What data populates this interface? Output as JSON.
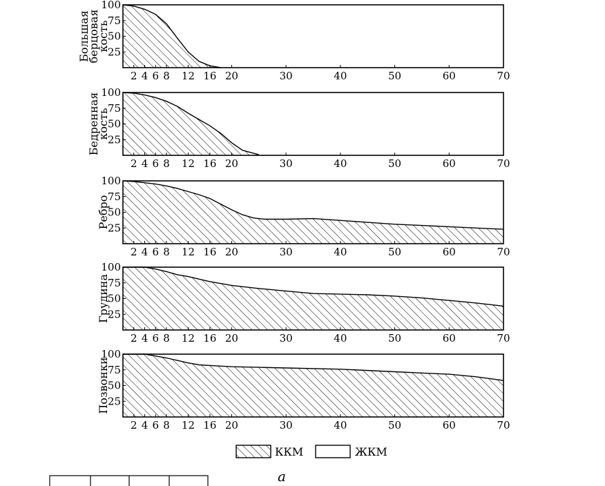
{
  "chart_data": {
    "type": "area",
    "x_ticks": [
      2,
      4,
      6,
      8,
      12,
      16,
      20,
      30,
      40,
      50,
      60,
      70
    ],
    "y_ticks": [
      25,
      50,
      75,
      100
    ],
    "xlim": [
      0,
      70
    ],
    "ylim": [
      0,
      100
    ],
    "panels": [
      {
        "ylabel_lines": [
          "Большая",
          "берцовая",
          "кость"
        ],
        "x": [
          0,
          2,
          4,
          6,
          8,
          10,
          12,
          14,
          16,
          18
        ],
        "values": [
          100,
          98,
          93,
          85,
          70,
          47,
          25,
          10,
          3,
          0
        ]
      },
      {
        "ylabel_lines": [
          "Бедренная",
          "кость"
        ],
        "x": [
          0,
          2,
          4,
          6,
          8,
          10,
          12,
          14,
          16,
          18,
          20,
          22,
          25
        ],
        "values": [
          100,
          99,
          96,
          92,
          86,
          78,
          67,
          57,
          47,
          35,
          20,
          8,
          1
        ]
      },
      {
        "ylabel_lines": [
          "Ребро"
        ],
        "x": [
          0,
          2,
          4,
          6,
          8,
          10,
          12,
          14,
          16,
          18,
          20,
          22,
          24,
          26,
          30,
          35,
          40,
          45,
          50,
          55,
          60,
          65,
          70
        ],
        "values": [
          100,
          99,
          97,
          95,
          92,
          88,
          83,
          78,
          72,
          63,
          54,
          46,
          41,
          39,
          39,
          40,
          37,
          34,
          31,
          29,
          27,
          25,
          23
        ]
      },
      {
        "ylabel_lines": [
          "Грудина"
        ],
        "x": [
          0,
          2,
          4,
          6,
          8,
          10,
          12,
          14,
          16,
          18,
          20,
          25,
          30,
          35,
          40,
          45,
          50,
          55,
          60,
          65,
          70
        ],
        "values": [
          100,
          100,
          100,
          97,
          93,
          88,
          85,
          81,
          77,
          74,
          71,
          66,
          62,
          58,
          57,
          56,
          54,
          51,
          47,
          43,
          38
        ]
      },
      {
        "ylabel_lines": [
          "Позвонки"
        ],
        "x": [
          0,
          2,
          4,
          6,
          8,
          10,
          12,
          14,
          16,
          20,
          25,
          30,
          40,
          50,
          55,
          60,
          65,
          70
        ],
        "values": [
          100,
          100,
          100,
          97,
          94,
          90,
          86,
          83,
          82,
          80,
          79,
          78,
          76,
          72,
          70,
          68,
          64,
          58
        ]
      }
    ],
    "legend": [
      {
        "label": "ККМ",
        "fill": "hatched"
      },
      {
        "label": "ЖКМ",
        "fill": "empty"
      }
    ],
    "caption": "а"
  }
}
